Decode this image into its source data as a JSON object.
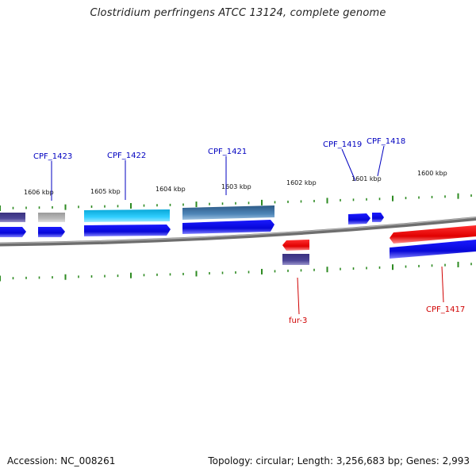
{
  "title": "Clostridium perfringens ATCC 13124, complete genome",
  "footer": {
    "accession": "Accession: NC_008261",
    "topology": "Topology: circular; Length: 3,256,683 bp; Genes: 2,993"
  },
  "colors": {
    "tick": "#2e8b22",
    "backbone": "#7a7a7a",
    "forward_label": "#0000c0",
    "reverse_label": "#d00000",
    "blue": "#0a0ae6",
    "cyan": "#22c5ee",
    "steel": "#4a7fb0",
    "red": "#ee1111",
    "purple": "#4a4090",
    "gray": "#aaaaaa"
  },
  "kbp_labels": [
    "1606 kbp",
    "1605 kbp",
    "1604 kbp",
    "1603 kbp",
    "1602 kbp",
    "1601 kbp",
    "1600 kbp"
  ],
  "forward_gene_labels": [
    "CPF_1423",
    "CPF_1422",
    "CPF_1421",
    "CPF_1419",
    "CPF_1418"
  ],
  "reverse_gene_labels": [
    "fur-3",
    "CPF_1417"
  ]
}
